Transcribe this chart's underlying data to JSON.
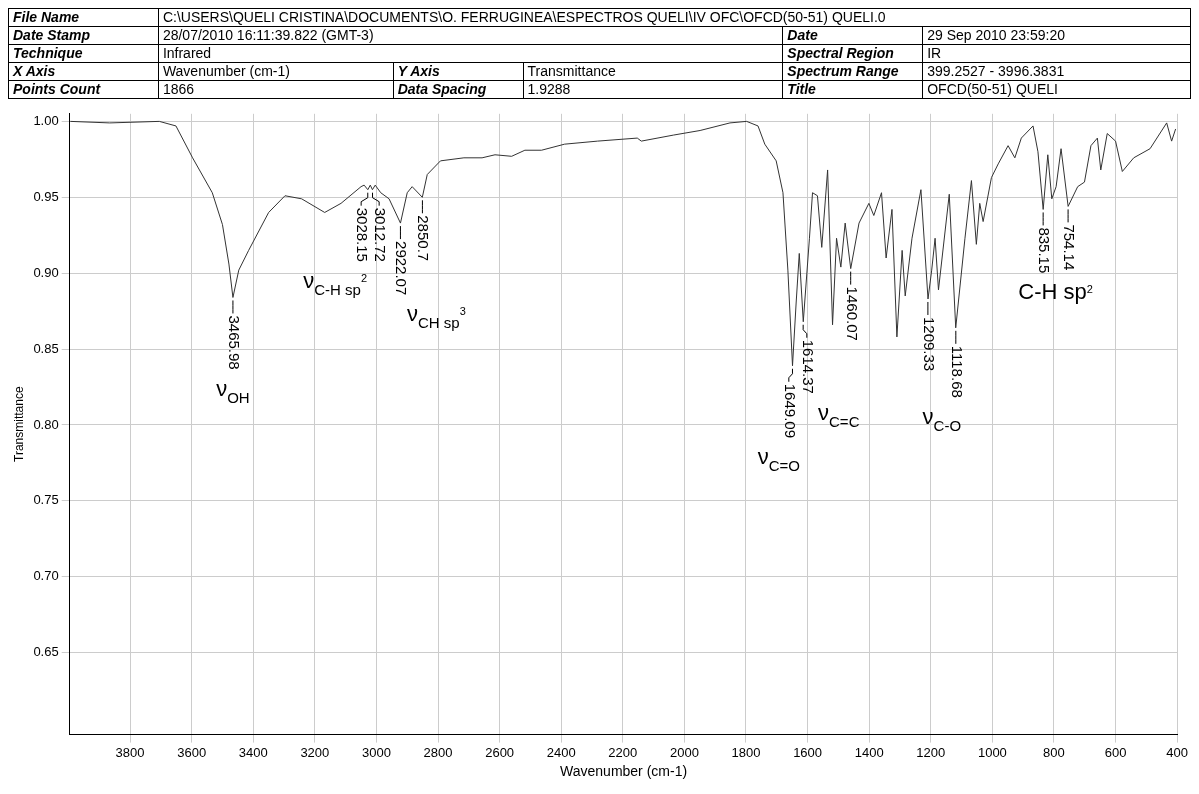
{
  "chart_data": {
    "type": "line",
    "xlabel": "Wavenumber (cm-1)",
    "ylabel": "Transmittance",
    "xlim": [
      3996,
      399
    ],
    "ylim": [
      0.596,
      1.005
    ],
    "xticks": [
      3800,
      3600,
      3400,
      3200,
      3000,
      2800,
      2600,
      2400,
      2200,
      2000,
      1800,
      1600,
      1400,
      1200,
      1000,
      800,
      600,
      400
    ],
    "yticks": [
      0.65,
      {
        "value": 0.7,
        "label": "0.70"
      },
      0.75,
      {
        "value": 0.8,
        "label": "0.80"
      },
      0.85,
      {
        "value": 0.9,
        "label": "0.90"
      },
      0.95,
      {
        "value": 1.0,
        "label": "1.00"
      }
    ],
    "grid": true,
    "marker": "none",
    "line_style": "solid",
    "series": [
      {
        "color": "#333333",
        "x": [
          3994,
          3866,
          3705,
          3651,
          3597,
          3533,
          3500,
          3479,
          3466,
          3447,
          3415,
          3350,
          3297,
          3243,
          3168,
          3115,
          3050,
          3040,
          3028,
          3020,
          3013,
          3004,
          2986,
          2959,
          2922,
          2900,
          2884,
          2851,
          2835,
          2792,
          2716,
          2657,
          2615,
          2561,
          2518,
          2464,
          2389,
          2282,
          2153,
          2140,
          2035,
          1949,
          1852,
          1798,
          1761,
          1739,
          1702,
          1680,
          1664,
          1649,
          1637,
          1627,
          1614,
          1594,
          1584,
          1568,
          1554,
          1535,
          1519,
          1506,
          1492,
          1478,
          1460,
          1433,
          1401,
          1385,
          1360,
          1345,
          1326,
          1310,
          1293,
          1283,
          1261,
          1232,
          1209,
          1197,
          1186,
          1175,
          1140,
          1119,
          1089,
          1068,
          1052,
          1041,
          1030,
          1003,
          981,
          949,
          927,
          906,
          868,
          852,
          835,
          820,
          807,
          793,
          777,
          754,
          723,
          701,
          680,
          659,
          648,
          627,
          600,
          578,
          541,
          488,
          434,
          418,
          405
        ],
        "values": [
          1.0,
          0.999,
          1.0,
          0.997,
          0.976,
          0.953,
          0.932,
          0.906,
          0.884,
          0.902,
          0.915,
          0.94,
          0.951,
          0.949,
          0.94,
          0.946,
          0.957,
          0.958,
          0.955,
          0.958,
          0.955,
          0.958,
          0.953,
          0.949,
          0.933,
          0.953,
          0.957,
          0.95,
          0.965,
          0.974,
          0.976,
          0.976,
          0.978,
          0.977,
          0.981,
          0.981,
          0.985,
          0.987,
          0.989,
          0.987,
          0.991,
          0.994,
          0.999,
          1.0,
          0.997,
          0.985,
          0.974,
          0.953,
          0.902,
          0.839,
          0.881,
          0.913,
          0.868,
          0.923,
          0.953,
          0.951,
          0.917,
          0.968,
          0.866,
          0.923,
          0.904,
          0.933,
          0.903,
          0.933,
          0.946,
          0.938,
          0.953,
          0.91,
          0.942,
          0.858,
          0.915,
          0.885,
          0.923,
          0.955,
          0.883,
          0.902,
          0.923,
          0.889,
          0.952,
          0.864,
          0.923,
          0.961,
          0.919,
          0.946,
          0.934,
          0.963,
          0.972,
          0.984,
          0.976,
          0.989,
          0.997,
          0.98,
          0.942,
          0.978,
          0.949,
          0.957,
          0.982,
          0.944,
          0.957,
          0.96,
          0.984,
          0.989,
          0.968,
          0.992,
          0.987,
          0.967,
          0.976,
          0.982,
          0.999,
          0.987,
          0.995
        ]
      }
    ],
    "annotations": [
      "File Name",
      "C:\\USERS\\QUELI CRISTINA\\DOCUMENTS\\O. FERRUGINEA\\ESPECTROS QUELI\\IV OFC\\OFCD(50-51) QUELI.0",
      "Date Stamp",
      "28/07/2010 16:11:39.822 (GMT-3)",
      "Date",
      "29 Sep 2010 23:59:20",
      "Technique",
      "Infrared",
      "Spectral Region",
      "IR",
      "X Axis",
      "Wavenumber (cm-1)",
      "Y Axis",
      "Transmittance",
      "Spectrum Range",
      "399.2527 - 3996.3831",
      "Points Count",
      "1866",
      "Data Spacing",
      "1.9288",
      "Title",
      "OFCD(50-51) QUELI",
      {
        "text": "3465.98",
        "x": 3465.98,
        "y": 0.884
      },
      {
        "text": "3028.15",
        "x": 3028.15,
        "y": 0.955
      },
      {
        "text": "3012.72",
        "x": 3012.72,
        "y": 0.955
      },
      {
        "text": "2922.07",
        "x": 2922.07,
        "y": 0.933
      },
      {
        "text": "2850.7",
        "x": 2850.7,
        "y": 0.95
      },
      {
        "text": "1649.09",
        "x": 1649.09,
        "y": 0.839
      },
      {
        "text": "1614.37",
        "x": 1614.37,
        "y": 0.868
      },
      {
        "text": "1460.07",
        "x": 1460.07,
        "y": 0.903
      },
      {
        "text": "1209.33",
        "x": 1209.33,
        "y": 0.883
      },
      {
        "text": "1118.68",
        "x": 1118.68,
        "y": 0.864
      },
      {
        "text": "835.15",
        "x": 835.15,
        "y": 0.942
      },
      {
        "text": "754.14",
        "x": 754.14,
        "y": 0.944
      },
      "ν$_{OH}$",
      "ν$_{C-H sp}$$^{2}$",
      "ν$_{CH sp}$$^{3}$",
      "ν$_{C=O}$",
      "ν$_{C=C}$",
      "ν$_{C-O}$",
      "C-H sp$^{2}$"
    ]
  }
}
